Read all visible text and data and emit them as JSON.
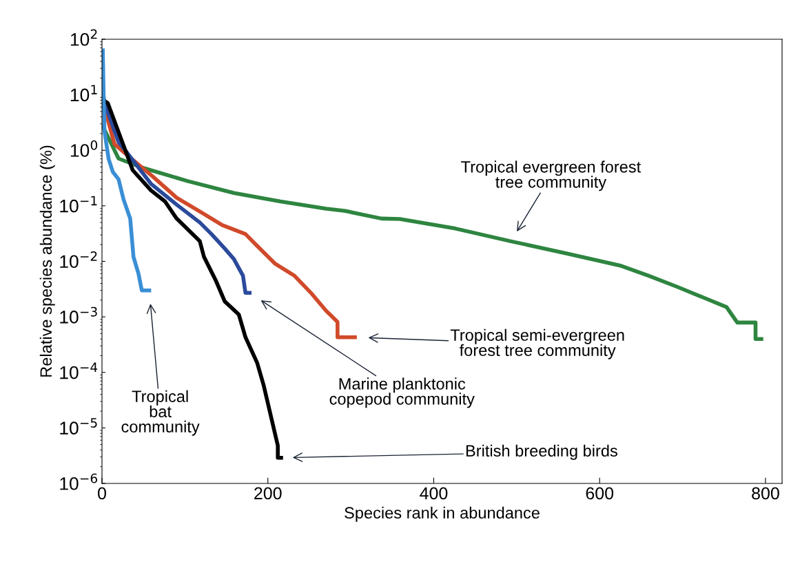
{
  "chart_data": {
    "type": "line",
    "xlabel": "Species rank in abundance",
    "ylabel": "Relative species abundance (%)",
    "log": "y",
    "grid": false,
    "xlim": [
      0,
      820
    ],
    "ylim": [
      1e-06,
      100
    ],
    "xticks": [
      0,
      200,
      400,
      600,
      800
    ],
    "yticks": [
      {
        "value": 100,
        "label": "10$^{2}$"
      },
      {
        "value": 10,
        "label": "10$^{1}$"
      },
      {
        "value": 1,
        "label": "10$^{0}$"
      },
      {
        "value": 0.1,
        "label": "10$^{−1}$"
      },
      {
        "value": 0.01,
        "label": "10$^{−2}$"
      },
      {
        "value": 0.001,
        "label": "10$^{−3}$"
      },
      {
        "value": 0.0001,
        "label": "10$^{−4}$"
      },
      {
        "value": 1e-05,
        "label": "10$^{−5}$"
      },
      {
        "value": 1e-06,
        "label": "10$^{−6}$"
      }
    ],
    "series": [
      {
        "color": "#2e8540",
        "x": [
          1,
          20,
          48,
          103,
          159,
          215,
          270,
          293,
          337,
          359,
          426,
          493,
          559,
          626,
          659,
          693,
          726,
          753,
          766,
          788,
          788,
          795
        ],
        "values": [
          2.7,
          0.71,
          0.49,
          0.28,
          0.17,
          0.12,
          0.089,
          0.081,
          0.059,
          0.058,
          0.039,
          0.023,
          0.014,
          0.0083,
          0.0055,
          0.0035,
          0.0022,
          0.0015,
          0.00079,
          0.00079,
          0.0004,
          0.0004
        ]
      },
      {
        "color": "#d04a2a",
        "x": [
          1,
          15,
          32,
          62,
          90,
          118,
          145,
          173,
          187,
          209,
          232,
          253,
          270,
          284,
          284,
          305
        ],
        "values": [
          7.6,
          1.3,
          0.78,
          0.33,
          0.14,
          0.079,
          0.045,
          0.031,
          0.019,
          0.009,
          0.0055,
          0.0026,
          0.0013,
          0.00081,
          0.00043,
          0.00043
        ]
      },
      {
        "color": "#2b4a9b",
        "x": [
          1,
          3,
          20,
          28,
          59,
          90,
          118,
          132,
          148,
          159,
          170,
          173,
          178
        ],
        "values": [
          12,
          7.1,
          1.4,
          1.0,
          0.25,
          0.105,
          0.05,
          0.031,
          0.017,
          0.011,
          0.0055,
          0.0027,
          0.0027
        ]
      },
      {
        "color": "#000000",
        "x": [
          1,
          7,
          37,
          59,
          76,
          90,
          118,
          123,
          137,
          148,
          165,
          173,
          187,
          195,
          203,
          212,
          212,
          216
        ],
        "values": [
          8.1,
          7.1,
          0.44,
          0.19,
          0.12,
          0.059,
          0.023,
          0.012,
          0.0046,
          0.0019,
          0.0011,
          0.00043,
          0.00015,
          5.8e-05,
          1.8e-05,
          4.8e-06,
          2.9e-06,
          2.9e-06
        ]
      },
      {
        "color": "#3a8fd6",
        "x": [
          1,
          2,
          3,
          8,
          13,
          20,
          26,
          34,
          38,
          44,
          48,
          57
        ],
        "values": [
          63,
          9.3,
          2.2,
          0.7,
          0.41,
          0.3,
          0.13,
          0.059,
          0.012,
          0.006,
          0.003,
          0.003
        ]
      }
    ],
    "annotations": [
      "Tropical evergreen forest\ntree community",
      "Tropical semi-evergreen\nforest tree community",
      "Marine planktonic\ncopepod community",
      "Tropical\nbat\ncommunity",
      "British breeding birds"
    ]
  }
}
